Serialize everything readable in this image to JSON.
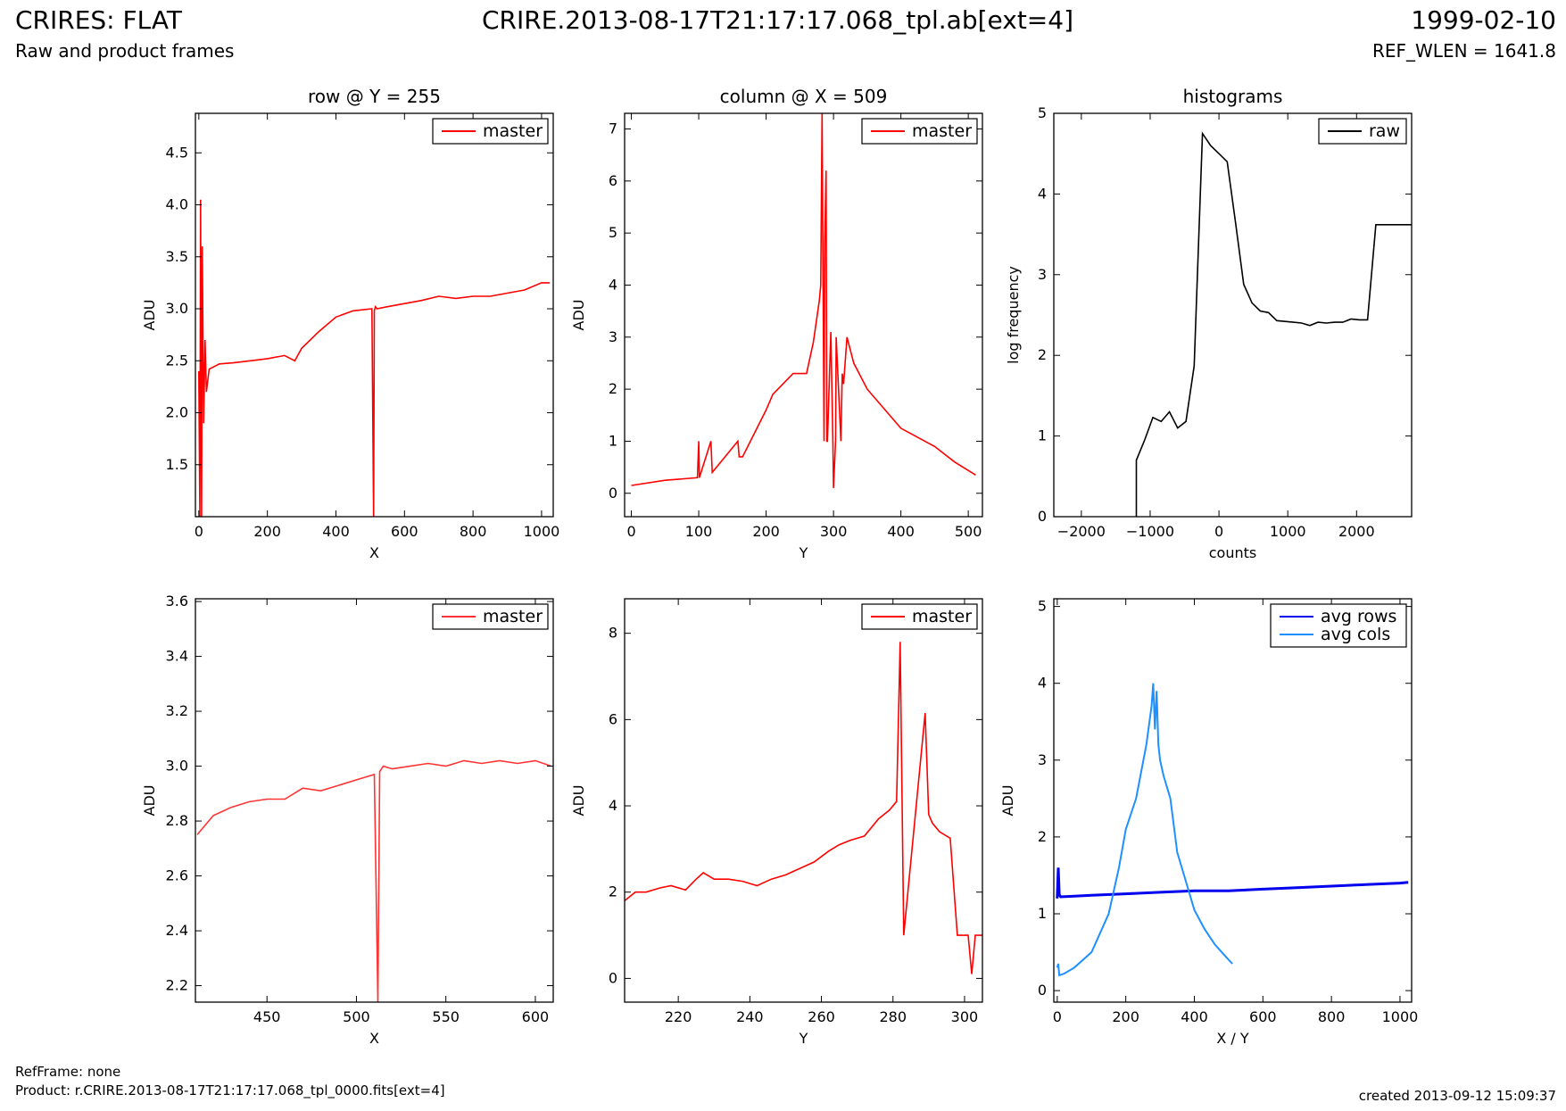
{
  "header": {
    "title_left": "CRIRES: FLAT",
    "subtitle_left": "Raw and product frames",
    "title_center": "CRIRE.2013-08-17T21:17:17.068_tpl.ab[ext=4]",
    "title_right": "1999-02-10",
    "subtitle_right": "REF_WLEN = 1641.8"
  },
  "footer": {
    "ref_frame": "RefFrame: none",
    "product": "Product: r.CRIRE.2013-08-17T21:17:17.068_tpl_0000.fits[ext=4]",
    "created": "created 2013-09-12 15:09:37"
  },
  "chart_data": [
    {
      "id": "row",
      "type": "line",
      "title": "row @ Y = 255",
      "xlabel": "X",
      "ylabel": "ADU",
      "xlim": [
        -10,
        1034
      ],
      "ylim": [
        1.0,
        4.88
      ],
      "xticks": [
        0,
        200,
        400,
        600,
        800,
        1000
      ],
      "yticks": [
        1.5,
        2.0,
        2.5,
        3.0,
        3.5,
        4.0,
        4.5
      ],
      "ytick_labels": [
        "1.5",
        "2.0",
        "2.5",
        "3.0",
        "3.5",
        "4.0",
        "4.5"
      ],
      "legend": "top-right",
      "series": [
        {
          "name": "master",
          "color": "#ff0000",
          "x": [
            0,
            3,
            5,
            8,
            10,
            14,
            18,
            22,
            30,
            60,
            100,
            150,
            200,
            250,
            280,
            300,
            350,
            400,
            450,
            505,
            510,
            512,
            515,
            520,
            550,
            600,
            650,
            700,
            750,
            800,
            850,
            900,
            950,
            1000,
            1024
          ],
          "y": [
            2.4,
            1.0,
            4.05,
            1.0,
            3.6,
            1.9,
            2.7,
            2.2,
            2.42,
            2.47,
            2.48,
            2.5,
            2.52,
            2.55,
            2.5,
            2.62,
            2.78,
            2.92,
            2.98,
            3.0,
            1.0,
            2.98,
            3.02,
            3.0,
            3.02,
            3.05,
            3.08,
            3.12,
            3.1,
            3.12,
            3.12,
            3.15,
            3.18,
            3.25,
            3.25
          ]
        }
      ]
    },
    {
      "id": "column",
      "type": "line",
      "title": "column @ X = 509",
      "xlabel": "Y",
      "ylabel": "ADU",
      "xlim": [
        -10,
        521
      ],
      "ylim": [
        -0.45,
        7.3
      ],
      "xticks": [
        0,
        100,
        200,
        300,
        400,
        500
      ],
      "yticks": [
        0,
        1,
        2,
        3,
        4,
        5,
        6,
        7
      ],
      "ytick_labels": [
        "0",
        "1",
        "2",
        "3",
        "4",
        "5",
        "6",
        "7"
      ],
      "legend": "top-right",
      "series": [
        {
          "name": "master",
          "color": "#ff0000",
          "x": [
            0,
            50,
            98,
            100,
            101,
            118,
            120,
            158,
            160,
            165,
            200,
            210,
            240,
            260,
            270,
            279,
            281,
            283,
            286,
            287,
            289,
            290,
            291,
            296,
            299,
            300,
            303,
            304,
            311,
            313,
            315,
            320,
            330,
            350,
            400,
            450,
            480,
            511
          ],
          "y": [
            0.15,
            0.25,
            0.3,
            1.0,
            0.3,
            1.0,
            0.4,
            1.0,
            0.7,
            0.7,
            1.6,
            1.9,
            2.3,
            2.3,
            2.9,
            3.7,
            4.0,
            7.3,
            1.0,
            4.8,
            6.2,
            1.0,
            1.0,
            3.1,
            1.0,
            0.1,
            1.0,
            3.0,
            1.0,
            2.3,
            2.1,
            3.0,
            2.5,
            2.0,
            1.25,
            0.9,
            0.6,
            0.35
          ]
        }
      ]
    },
    {
      "id": "histograms",
      "type": "line",
      "title": "histograms",
      "xlabel": "counts",
      "ylabel": "log frequency",
      "xlim": [
        -2400,
        2800
      ],
      "ylim": [
        0,
        5
      ],
      "xticks": [
        -2000,
        -1000,
        0,
        1000,
        2000
      ],
      "xtick_labels": [
        "−2000",
        "−1000",
        "0",
        "1000",
        "2000"
      ],
      "yticks": [
        0,
        1,
        2,
        3,
        4,
        5
      ],
      "ytick_labels": [
        "0",
        "1",
        "2",
        "3",
        "4",
        "5"
      ],
      "legend": "top-right",
      "series": [
        {
          "name": "raw",
          "color": "#000000",
          "x": [
            -1200,
            -1200,
            -1080,
            -960,
            -840,
            -720,
            -600,
            -480,
            -360,
            -240,
            -120,
            0,
            120,
            240,
            360,
            480,
            600,
            720,
            840,
            960,
            1080,
            1200,
            1320,
            1440,
            1560,
            1680,
            1800,
            1920,
            2040,
            2160,
            2280,
            2400,
            2520,
            2640,
            2760,
            2800
          ],
          "y": [
            0,
            0.7,
            0.95,
            1.23,
            1.18,
            1.3,
            1.1,
            1.18,
            1.87,
            4.75,
            4.6,
            4.5,
            4.4,
            3.65,
            2.88,
            2.65,
            2.55,
            2.53,
            2.43,
            2.42,
            2.41,
            2.4,
            2.37,
            2.41,
            2.4,
            2.41,
            2.41,
            2.45,
            2.44,
            2.44,
            3.62,
            3.62,
            3.62,
            3.62,
            3.62,
            3.62
          ]
        }
      ]
    },
    {
      "id": "row-zoom",
      "type": "line",
      "xlabel": "X",
      "ylabel": "ADU",
      "xlim": [
        410,
        610
      ],
      "ylim": [
        2.14,
        3.61
      ],
      "xticks": [
        450,
        500,
        550,
        600
      ],
      "yticks": [
        2.2,
        2.4,
        2.6,
        2.8,
        3.0,
        3.2,
        3.4,
        3.6
      ],
      "ytick_labels": [
        "2.2",
        "2.4",
        "2.6",
        "2.8",
        "3.0",
        "3.2",
        "3.4",
        "3.6"
      ],
      "legend": "top-right",
      "series": [
        {
          "name": "master",
          "color": "#ff3333",
          "x": [
            411,
            420,
            430,
            440,
            450,
            460,
            470,
            480,
            490,
            500,
            505,
            510,
            512,
            513,
            515,
            520,
            530,
            540,
            550,
            560,
            570,
            580,
            590,
            600,
            609
          ],
          "y": [
            2.75,
            2.82,
            2.85,
            2.87,
            2.88,
            2.88,
            2.92,
            2.91,
            2.93,
            2.95,
            2.96,
            2.97,
            2.14,
            2.98,
            3.0,
            2.99,
            3.0,
            3.01,
            3.0,
            3.02,
            3.01,
            3.02,
            3.01,
            3.02,
            3.0
          ]
        }
      ]
    },
    {
      "id": "column-zoom",
      "type": "line",
      "xlabel": "Y",
      "ylabel": "ADU",
      "xlim": [
        205,
        305
      ],
      "ylim": [
        -0.55,
        8.8
      ],
      "xticks": [
        220,
        240,
        260,
        280,
        300
      ],
      "yticks": [
        0,
        2,
        4,
        6,
        8
      ],
      "ytick_labels": [
        "0",
        "2",
        "4",
        "6",
        "8"
      ],
      "legend": "top-right",
      "series": [
        {
          "name": "master",
          "color": "#ff0000",
          "x": [
            205,
            208,
            211,
            215,
            218,
            222,
            225,
            227,
            230,
            234,
            238,
            242,
            246,
            250,
            254,
            258,
            262,
            265,
            268,
            272,
            276,
            279,
            281,
            282,
            283,
            289,
            290,
            291,
            293,
            296,
            298,
            301,
            302,
            303,
            305
          ],
          "y": [
            1.8,
            2.0,
            2.0,
            2.1,
            2.15,
            2.05,
            2.3,
            2.45,
            2.3,
            2.3,
            2.25,
            2.15,
            2.3,
            2.4,
            2.55,
            2.7,
            2.95,
            3.1,
            3.2,
            3.3,
            3.7,
            3.9,
            4.1,
            7.8,
            1.0,
            6.15,
            3.8,
            3.6,
            3.4,
            3.25,
            1.0,
            1.0,
            0.1,
            1.0,
            1.0
          ]
        }
      ]
    },
    {
      "id": "averages",
      "type": "line",
      "xlabel": "X / Y",
      "ylabel": "ADU",
      "xlim": [
        -10,
        1034
      ],
      "ylim": [
        -0.15,
        5.1
      ],
      "xticks": [
        0,
        200,
        400,
        600,
        800,
        1000
      ],
      "yticks": [
        0,
        1,
        2,
        3,
        4,
        5
      ],
      "ytick_labels": [
        "0",
        "1",
        "2",
        "3",
        "4",
        "5"
      ],
      "legend": "top-right",
      "series": [
        {
          "name": "avg rows",
          "color": "#0000ee",
          "x": [
            0,
            3,
            6,
            10,
            50,
            100,
            200,
            300,
            400,
            500,
            600,
            700,
            800,
            900,
            1000,
            1024
          ],
          "y": [
            1.2,
            1.6,
            1.25,
            1.22,
            1.23,
            1.24,
            1.26,
            1.28,
            1.3,
            1.3,
            1.32,
            1.34,
            1.36,
            1.38,
            1.4,
            1.41
          ]
        },
        {
          "name": "avg cols",
          "color": "#1e90ff",
          "x": [
            0,
            3,
            6,
            20,
            50,
            100,
            150,
            180,
            200,
            230,
            260,
            275,
            280,
            285,
            290,
            295,
            300,
            310,
            330,
            350,
            370,
            400,
            430,
            460,
            490,
            511
          ],
          "y": [
            0.3,
            0.35,
            0.2,
            0.22,
            0.3,
            0.5,
            1.0,
            1.6,
            2.1,
            2.5,
            3.2,
            3.7,
            4.0,
            3.4,
            3.9,
            3.2,
            3.0,
            2.8,
            2.5,
            1.8,
            1.5,
            1.05,
            0.8,
            0.6,
            0.45,
            0.35
          ]
        }
      ]
    }
  ]
}
